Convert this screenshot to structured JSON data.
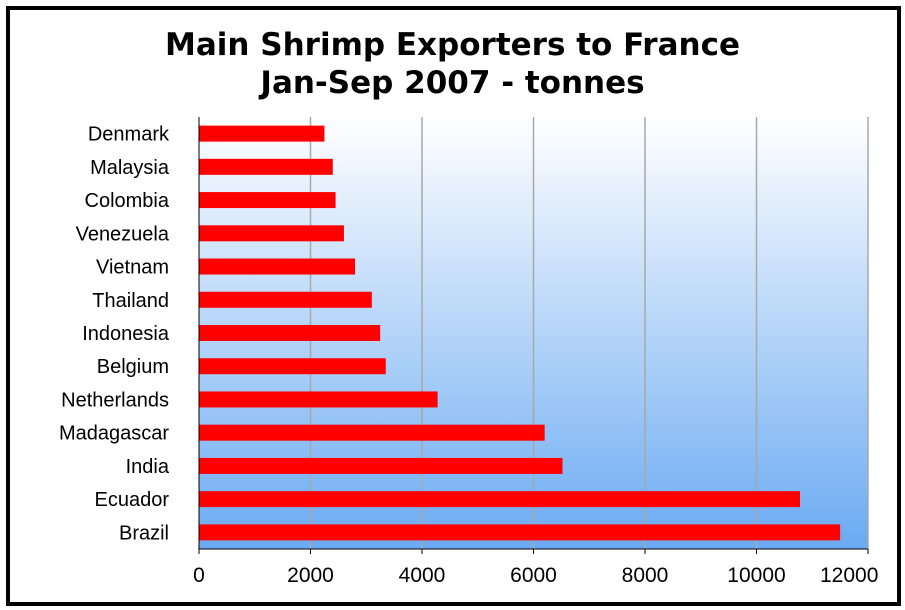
{
  "chart_data": {
    "type": "bar",
    "orientation": "horizontal",
    "title": [
      "Main Shrimp Exporters to France",
      "Jan-Sep 2007 -  tonnes"
    ],
    "categories": [
      "Denmark",
      "Malaysia",
      "Colombia",
      "Venezuela",
      "Vietnam",
      "Thailand",
      "Indonesia",
      "Belgium",
      "Netherlands",
      "Madagascar",
      "India",
      "Ecuador",
      "Brazil"
    ],
    "values": [
      2250,
      2400,
      2450,
      2600,
      2800,
      3100,
      3250,
      3350,
      4280,
      6200,
      6520,
      10780,
      11500
    ],
    "xlim": [
      0,
      12000
    ],
    "xticks": [
      0,
      2000,
      4000,
      6000,
      8000,
      10000,
      12000
    ],
    "xtick_labels": [
      "0",
      "2000",
      "4000",
      "6000",
      "8000",
      "10000",
      "12000"
    ],
    "grid": true,
    "colors": {
      "bar": "#ff0000",
      "plot_gradient_top": "#ffffff",
      "plot_gradient_bottom": "#6aaaf2",
      "gridline": "#a8a8a8"
    }
  }
}
